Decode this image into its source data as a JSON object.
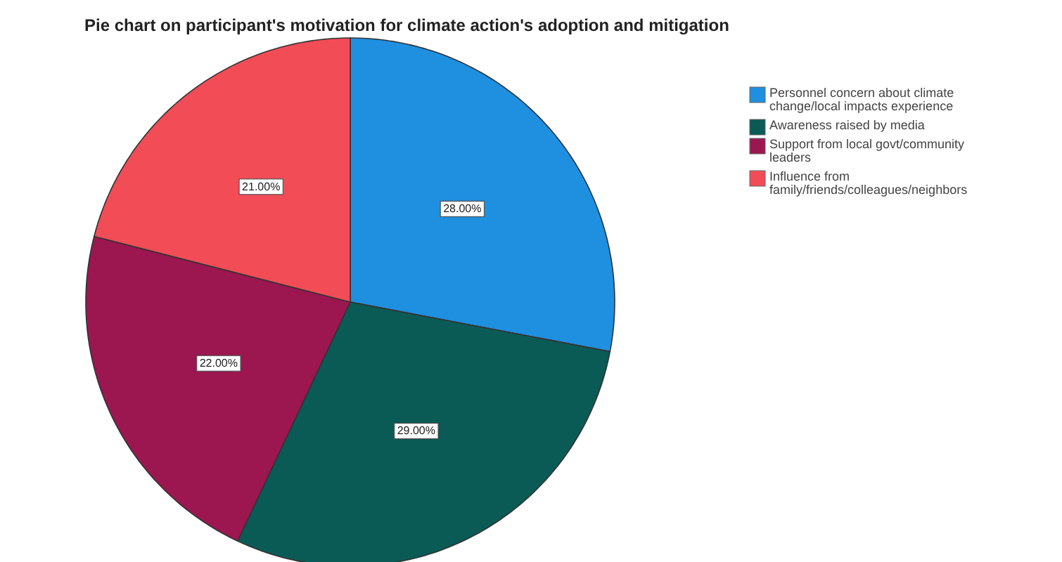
{
  "chart_data": {
    "type": "pie",
    "title": "Pie chart on participant's motivation for climate action's adoption and mitigation",
    "categories": [
      "Personnel concern about climate change/local impacts experience",
      "Awareness raised by media",
      "Support from local govt/community leaders",
      "Influence from family/friends/colleagues/neighbors"
    ],
    "values": [
      28,
      29,
      22,
      21
    ],
    "value_labels": [
      "28.00%",
      "29.00%",
      "22.00%",
      "21.00%"
    ],
    "colors": [
      "#1f8fe0",
      "#0a5a55",
      "#9c1650",
      "#f24c57"
    ],
    "legend": "right"
  }
}
